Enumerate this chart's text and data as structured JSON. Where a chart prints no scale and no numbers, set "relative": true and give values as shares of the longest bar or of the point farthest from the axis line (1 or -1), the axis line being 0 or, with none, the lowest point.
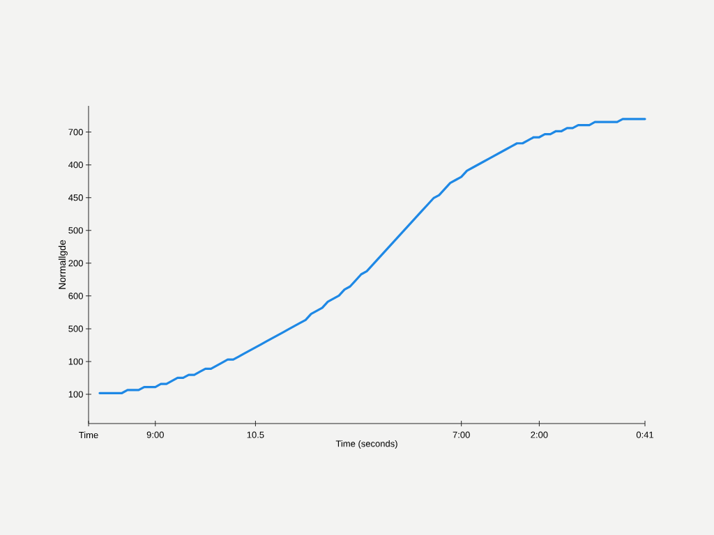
{
  "chart_data": {
    "type": "line",
    "relative": true,
    "xlabel": "Time (seconds)",
    "ylabel": "Normallgde",
    "categories": [
      "Time",
      null,
      null,
      null,
      null,
      null,
      null,
      null,
      null,
      null,
      null,
      null,
      "9:00",
      null,
      null,
      null,
      null,
      null,
      null,
      null,
      null,
      null,
      null,
      null,
      null,
      null,
      null,
      null,
      null,
      null,
      "10.5",
      null,
      null,
      null,
      null,
      null,
      null,
      null,
      null,
      null,
      null,
      null,
      null,
      null,
      null,
      null,
      null,
      null,
      null,
      null,
      null,
      null,
      null,
      null,
      null,
      null,
      null,
      null,
      null,
      null,
      null,
      null,
      null,
      null,
      null,
      null,
      null,
      "7:00",
      null,
      null,
      null,
      null,
      null,
      null,
      null,
      null,
      null,
      null,
      null,
      null,
      null,
      "2:00",
      null,
      null,
      null,
      null,
      null,
      null,
      null,
      null,
      null,
      null,
      null,
      null,
      null,
      null,
      null,
      null,
      null,
      null,
      "0:41"
    ],
    "series": [
      {
        "color": "#1e88e5",
        "values": [
          null,
          null,
          0.1,
          0.1,
          0.1,
          0.1,
          0.1,
          0.11,
          0.11,
          0.11,
          0.12,
          0.12,
          0.12,
          0.13,
          0.13,
          0.14,
          0.15,
          0.15,
          0.16,
          0.16,
          0.17,
          0.18,
          0.18,
          0.19,
          0.2,
          0.21,
          0.21,
          0.22,
          0.23,
          0.24,
          0.25,
          0.26,
          0.27,
          0.28,
          0.29,
          0.3,
          0.31,
          0.32,
          0.33,
          0.34,
          0.36,
          0.37,
          0.38,
          0.4,
          0.41,
          0.42,
          0.44,
          0.45,
          0.47,
          0.49,
          0.5,
          0.52,
          0.54,
          0.56,
          0.58,
          0.6,
          0.62,
          0.64,
          0.66,
          0.68,
          0.7,
          0.72,
          0.74,
          0.75,
          0.77,
          0.79,
          0.8,
          0.81,
          0.83,
          0.84,
          0.85,
          0.86,
          0.87,
          0.88,
          0.89,
          0.9,
          0.91,
          0.92,
          0.92,
          0.93,
          0.94,
          0.94,
          0.95,
          0.95,
          0.96,
          0.96,
          0.97,
          0.97,
          0.98,
          0.98,
          0.98,
          0.99,
          0.99,
          0.99,
          0.99,
          0.99,
          1,
          1,
          1,
          1,
          1
        ]
      }
    ],
    "annotations": [
      "700",
      "400",
      "450",
      "500",
      "200",
      "600",
      "500",
      "100",
      "100"
    ]
  }
}
